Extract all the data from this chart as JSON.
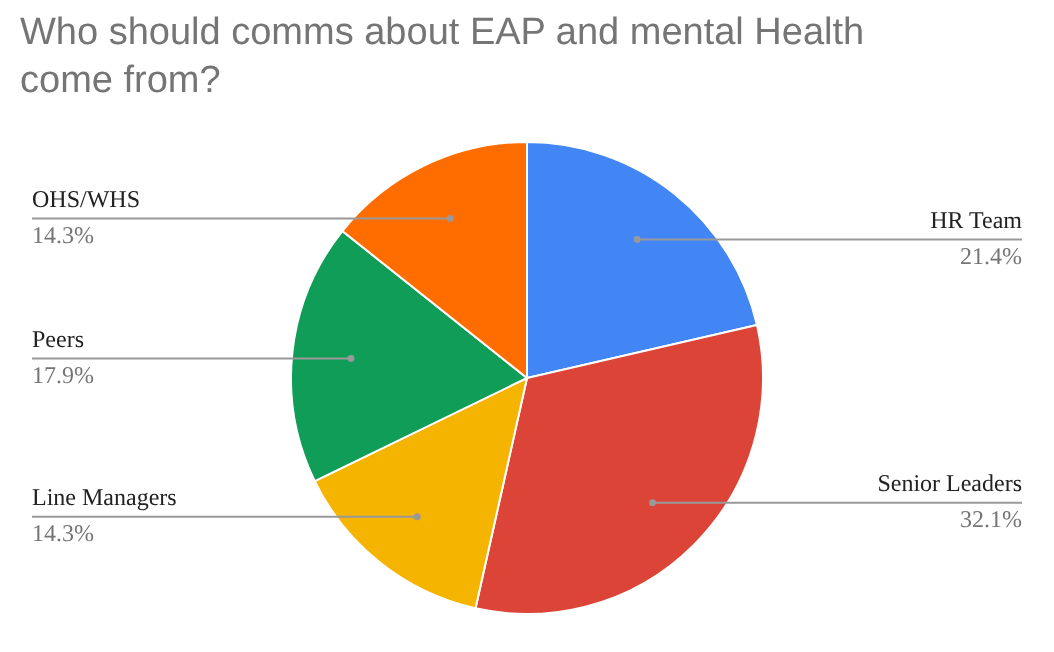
{
  "chart_data": {
    "type": "pie",
    "title": "Who should comms about EAP and mental Health come from?",
    "categories": [
      "HR Team",
      "Senior Leaders",
      "Line Managers",
      "Peers",
      "OHS/WHS"
    ],
    "values": [
      21.4,
      32.1,
      14.3,
      17.9,
      14.3
    ],
    "colors": [
      "#4285f4",
      "#db4437",
      "#f4b400",
      "#0f9d58",
      "#ff6d01"
    ],
    "value_labels": [
      "21.4%",
      "32.1%",
      "14.3%",
      "17.9%",
      "14.3%"
    ],
    "legend": false
  }
}
